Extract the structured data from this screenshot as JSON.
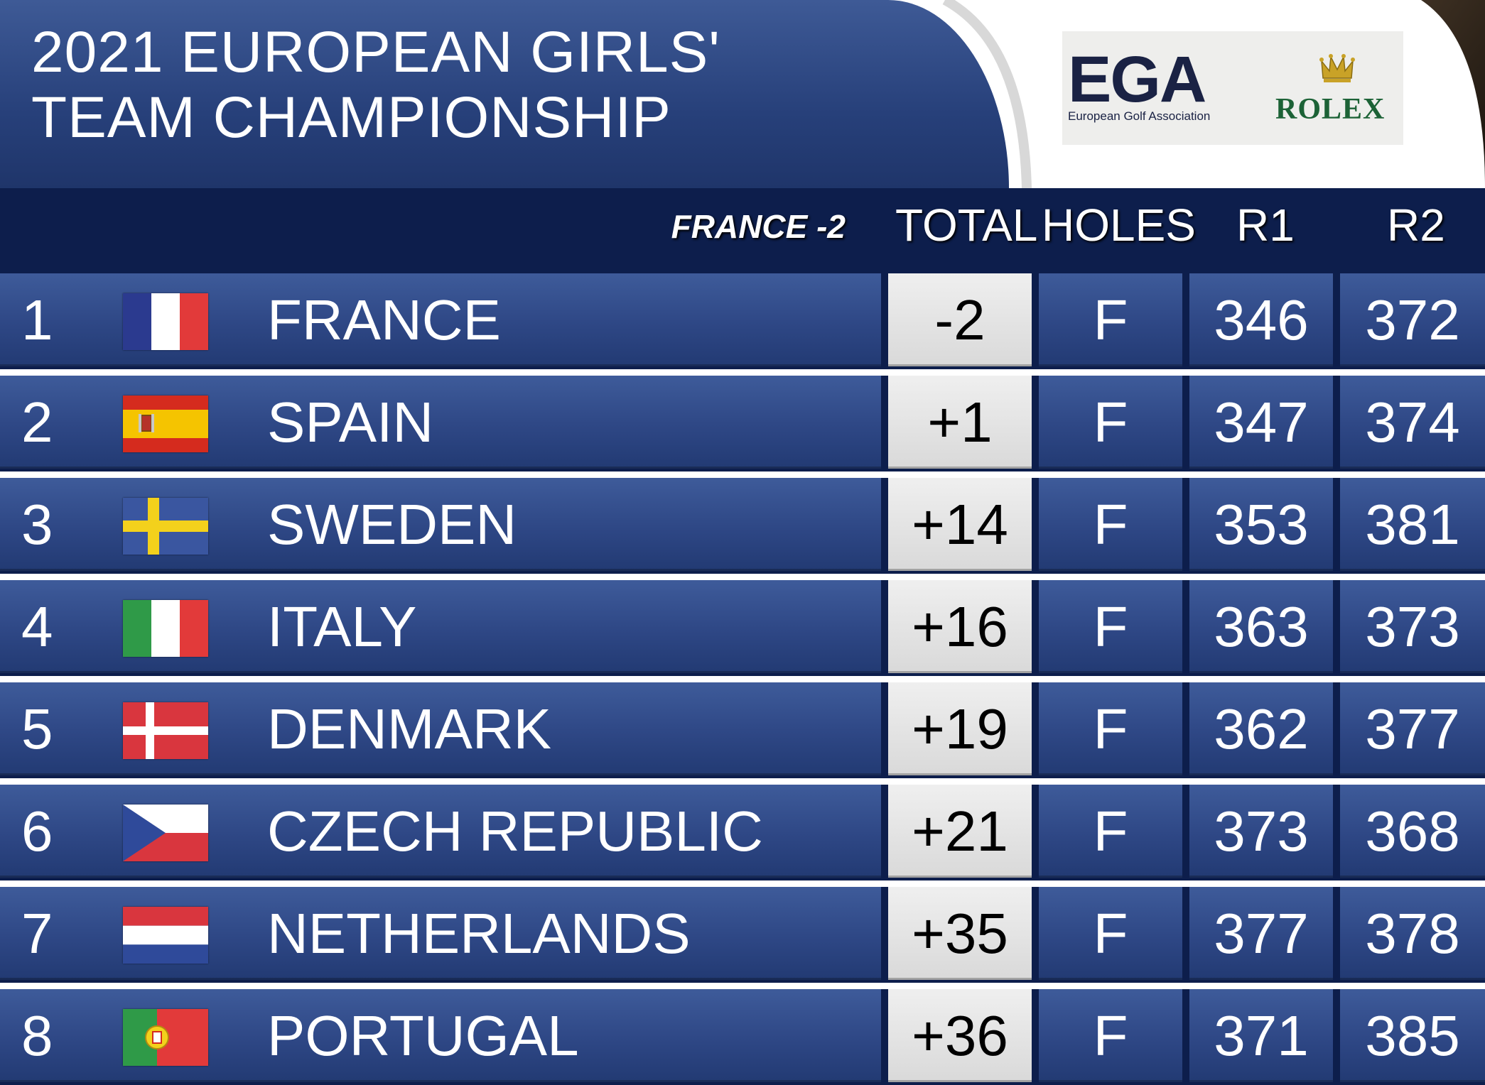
{
  "title": {
    "line1": "2021 EUROPEAN GIRLS'",
    "line2": "TEAM CHAMPIONSHIP"
  },
  "sponsors": {
    "ega_mark": "EGA",
    "ega_subtitle": "European Golf Association",
    "rolex": "ROLEX"
  },
  "header": {
    "leader_note": "FRANCE -2",
    "total": "TOTAL",
    "holes": "HOLES",
    "r1": "R1",
    "r2": "R2"
  },
  "rows": [
    {
      "pos": "1",
      "team": "FRANCE",
      "flag": "france-flag-icon",
      "total": "-2",
      "holes": "F",
      "r1": "346",
      "r2": "372"
    },
    {
      "pos": "2",
      "team": "SPAIN",
      "flag": "spain-flag-icon",
      "total": "+1",
      "holes": "F",
      "r1": "347",
      "r2": "374"
    },
    {
      "pos": "3",
      "team": "SWEDEN",
      "flag": "sweden-flag-icon",
      "total": "+14",
      "holes": "F",
      "r1": "353",
      "r2": "381"
    },
    {
      "pos": "4",
      "team": "ITALY",
      "flag": "italy-flag-icon",
      "total": "+16",
      "holes": "F",
      "r1": "363",
      "r2": "373"
    },
    {
      "pos": "5",
      "team": "DENMARK",
      "flag": "denmark-flag-icon",
      "total": "+19",
      "holes": "F",
      "r1": "362",
      "r2": "377"
    },
    {
      "pos": "6",
      "team": "CZECH REPUBLIC",
      "flag": "czech-flag-icon",
      "total": "+21",
      "holes": "F",
      "r1": "373",
      "r2": "368"
    },
    {
      "pos": "7",
      "team": "NETHERLANDS",
      "flag": "netherlands-flag-icon",
      "total": "+35",
      "holes": "F",
      "r1": "377",
      "r2": "378"
    },
    {
      "pos": "8",
      "team": "PORTUGAL",
      "flag": "portugal-flag-icon",
      "total": "+36",
      "holes": "F",
      "r1": "371",
      "r2": "385"
    }
  ]
}
